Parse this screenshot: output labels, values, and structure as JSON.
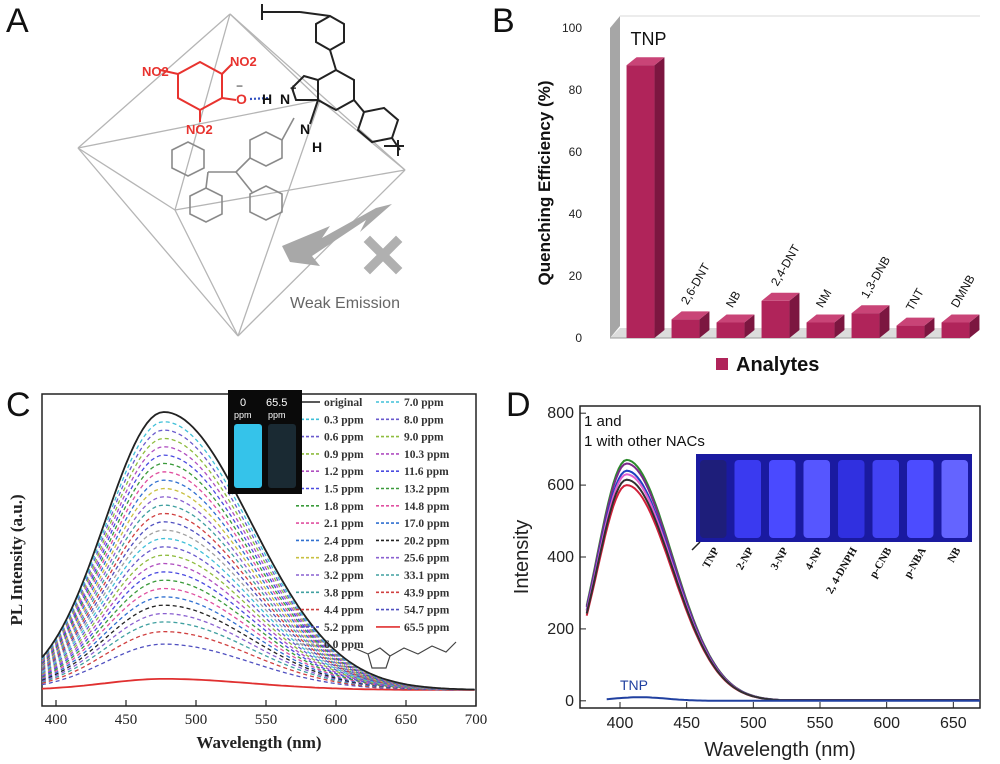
{
  "panels": {
    "a": {
      "label": "A",
      "groups": {
        "nitro_1": "NO2",
        "nitro_2": "NO2",
        "nitro_3": "NO2",
        "oxygen": "O",
        "hydrogen_1": "H",
        "hydrogen_2": "H",
        "nitrogen_1": "N",
        "nitrogen_2": "N",
        "charge_plus": "+",
        "charge_minus": "−"
      },
      "caption": "Weak Emission"
    },
    "b": {
      "label": "B"
    },
    "c": {
      "label": "C",
      "inset_labels": [
        "0",
        "65.5",
        "ppm",
        "ppm"
      ]
    },
    "d": {
      "label": "D"
    }
  },
  "chart_data": [
    {
      "id": "B",
      "type": "bar",
      "categories": [
        "TNP",
        "2,6-DNT",
        "NB",
        "2,4-DNT",
        "NM",
        "1,3-DNB",
        "TNT",
        "DMNB"
      ],
      "values": [
        88,
        6,
        5,
        12,
        5,
        8,
        4,
        5
      ],
      "xlabel": "Analytes",
      "ylabel": "Quenching Efficiency (%)",
      "ylim": [
        0,
        100
      ],
      "yticks": [
        "0",
        "20",
        "40",
        "60",
        "80",
        "100"
      ],
      "legend": "Analytes",
      "colors": {
        "bar": "#b0245a",
        "bar_side": "#7c1640",
        "bar_top": "#c94477",
        "wall": "#a6a6a6"
      }
    },
    {
      "id": "C",
      "type": "line",
      "xlabel": "Wavelength (nm)",
      "ylabel": "PL Intensity (a.u.)",
      "xlim": [
        390,
        700
      ],
      "xticks": [
        "400",
        "450",
        "500",
        "550",
        "600",
        "650",
        "700"
      ],
      "peak_x": 477,
      "series": [
        {
          "name": "original",
          "peak": 1.0,
          "color": "#222222",
          "style": "solid"
        },
        {
          "name": "0.3 ppm",
          "peak": 0.965,
          "color": "#40c0d8",
          "style": "dashed"
        },
        {
          "name": "0.6 ppm",
          "peak": 0.935,
          "color": "#6a5acd",
          "style": "dashed"
        },
        {
          "name": "0.9 ppm",
          "peak": 0.905,
          "color": "#8fbc3f",
          "style": "dashed"
        },
        {
          "name": "1.2 ppm",
          "peak": 0.875,
          "color": "#b04fc0",
          "style": "dashed"
        },
        {
          "name": "1.5 ppm",
          "peak": 0.845,
          "color": "#4a4ae0",
          "style": "dashed"
        },
        {
          "name": "1.8 ppm",
          "peak": 0.815,
          "color": "#3a9a3a",
          "style": "dashed"
        },
        {
          "name": "2.1 ppm",
          "peak": 0.785,
          "color": "#e050a0",
          "style": "dashed"
        },
        {
          "name": "2.4 ppm",
          "peak": 0.755,
          "color": "#3070d0",
          "style": "dashed"
        },
        {
          "name": "2.8 ppm",
          "peak": 0.725,
          "color": "#c8c040",
          "style": "dashed"
        },
        {
          "name": "3.2 ppm",
          "peak": 0.695,
          "color": "#8a60d0",
          "style": "dashed"
        },
        {
          "name": "3.8 ppm",
          "peak": 0.665,
          "color": "#40a0a0",
          "style": "dashed"
        },
        {
          "name": "4.4 ppm",
          "peak": 0.635,
          "color": "#d04040",
          "style": "dashed"
        },
        {
          "name": "5.2 ppm",
          "peak": 0.605,
          "color": "#5050c0",
          "style": "dashed"
        },
        {
          "name": "6.0 ppm",
          "peak": 0.575,
          "color": "#a0a0a0",
          "style": "dashed"
        },
        {
          "name": "7.0 ppm",
          "peak": 0.545,
          "color": "#40c0d8",
          "style": "dashed"
        },
        {
          "name": "8.0 ppm",
          "peak": 0.515,
          "color": "#6a5acd",
          "style": "dashed"
        },
        {
          "name": "9.0 ppm",
          "peak": 0.485,
          "color": "#8fbc3f",
          "style": "dashed"
        },
        {
          "name": "10.3 ppm",
          "peak": 0.455,
          "color": "#b04fc0",
          "style": "dashed"
        },
        {
          "name": "11.6 ppm",
          "peak": 0.425,
          "color": "#4a4ae0",
          "style": "dashed"
        },
        {
          "name": "13.2 ppm",
          "peak": 0.395,
          "color": "#3a9a3a",
          "style": "dashed"
        },
        {
          "name": "14.8 ppm",
          "peak": 0.365,
          "color": "#e050a0",
          "style": "dashed"
        },
        {
          "name": "17.0 ppm",
          "peak": 0.335,
          "color": "#3070d0",
          "style": "dashed"
        },
        {
          "name": "20.2 ppm",
          "peak": 0.305,
          "color": "#222222",
          "style": "dashed"
        },
        {
          "name": "25.6 ppm",
          "peak": 0.275,
          "color": "#8a60d0",
          "style": "dashed"
        },
        {
          "name": "33.1 ppm",
          "peak": 0.245,
          "color": "#40a0a0",
          "style": "dashed"
        },
        {
          "name": "43.9 ppm",
          "peak": 0.21,
          "color": "#d04040",
          "style": "dashed"
        },
        {
          "name": "54.7 ppm",
          "peak": 0.165,
          "color": "#5050c0",
          "style": "dashed"
        },
        {
          "name": "65.5 ppm",
          "peak": 0.04,
          "color": "#e03030",
          "style": "solid"
        }
      ]
    },
    {
      "id": "D",
      "type": "line",
      "xlabel": "Wavelength (nm)",
      "ylabel": "Intensity",
      "xlim": [
        370,
        670
      ],
      "ylim": [
        -20,
        820
      ],
      "xticks": [
        "400",
        "450",
        "500",
        "550",
        "600",
        "650"
      ],
      "yticks": [
        "0",
        "200",
        "400",
        "600",
        "800"
      ],
      "legend_lines": [
        "1 and",
        "1 with other NACs"
      ],
      "series": [
        {
          "name": "",
          "color": "#d0203a",
          "peak": 600
        },
        {
          "name": "",
          "color": "#2d8a2d",
          "peak": 670
        },
        {
          "name": "",
          "color": "#7a2a8a",
          "peak": 660
        },
        {
          "name": "",
          "color": "#2040c0",
          "peak": 640
        },
        {
          "name": "",
          "color": "#e060d0",
          "peak": 630
        },
        {
          "name": "",
          "color": "#303030",
          "peak": 615
        },
        {
          "name": "TNP",
          "color": "#2040a0",
          "peak": 10
        }
      ],
      "inset_labels": [
        "TNP",
        "2-NP",
        "3-NP",
        "4-NP",
        "2, 4-DNPH",
        "p-CNB",
        "p-NBA",
        "NB"
      ]
    }
  ]
}
